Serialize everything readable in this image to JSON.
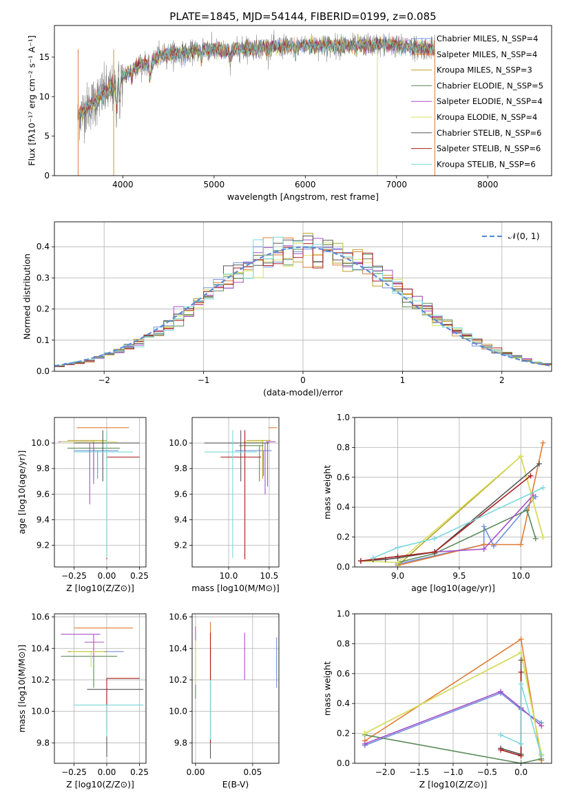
{
  "figure": {
    "title": "PLATE=1845, MJD=54144, FIBERID=0199, z=0.085"
  },
  "chart_data": [
    {
      "id": "spectrum",
      "type": "line",
      "title": "PLATE=1845, MJD=54144, FIBERID=0199, z=0.085",
      "xlabel": "wavelength [Angstrom, rest frame]",
      "ylabel": "Flux [fλ10⁻¹⁷ erg cm⁻² s⁻¹ A⁻¹]",
      "xlim": [
        3250,
        8700
      ],
      "ylim": [
        0,
        19
      ],
      "xticks": [
        4000,
        5000,
        6000,
        7000,
        8000
      ],
      "yticks": [
        0,
        5,
        10,
        15
      ],
      "grid": false,
      "legend_position": "right",
      "series": [
        {
          "name": "Chabrier MILES, N_SSP=4",
          "color": "#6f8fdc"
        },
        {
          "name": "Salpeter MILES, N_SSP=4",
          "color": "#e07a30"
        },
        {
          "name": "Kroupa MILES, N_SSP=3",
          "color": "#b8a02a"
        },
        {
          "name": "Chabrier ELODIE, N_SSP=5",
          "color": "#5a8a5a"
        },
        {
          "name": "Salpeter ELODIE, N_SSP=4",
          "color": "#a54fc8"
        },
        {
          "name": "Kroupa ELODIE, N_SSP=4",
          "color": "#d6e05a"
        },
        {
          "name": "Chabrier STELIB, N_SSP=6",
          "color": "#555555"
        },
        {
          "name": "Salpeter STELIB, N_SSP=6",
          "color": "#a81c1c"
        },
        {
          "name": "Kroupa STELIB, N_SSP=6",
          "color": "#78d8dc"
        }
      ],
      "data_color": "#808080",
      "continuum": {
        "x": [
          3500,
          3600,
          3700,
          3800,
          3900,
          4000,
          4100,
          4200,
          4300,
          4400,
          4500,
          4700,
          4900,
          5100,
          5300,
          5500,
          5800,
          6000,
          6300,
          6600,
          6900,
          7200,
          7420
        ],
        "y": [
          7.5,
          8.5,
          9.5,
          10.5,
          11.0,
          12.5,
          13.5,
          14.2,
          14.2,
          15.2,
          15.5,
          15.5,
          16.0,
          15.8,
          16.0,
          16.2,
          16.3,
          16.5,
          16.4,
          16.5,
          16.6,
          16.2,
          16.0
        ]
      }
    },
    {
      "id": "residuals",
      "type": "histogram",
      "xlabel": "(data-model)/error",
      "ylabel": "Normed distribution",
      "xlim": [
        -2.5,
        2.5
      ],
      "ylim": [
        0,
        0.48
      ],
      "xticks": [
        -2,
        -1,
        0,
        1,
        2
      ],
      "yticks": [
        0.0,
        0.1,
        0.2,
        0.3,
        0.4
      ],
      "grid": true,
      "legend_position": "top-right",
      "reference_curve": {
        "name": "𝒩(0, 1)",
        "color": "#5b8bd8",
        "style": "dashed"
      },
      "bin_width": 0.1,
      "bins_start": -2.5
    },
    {
      "id": "age-Z",
      "type": "errorbar",
      "xlabel": "Z [log10(Z/Z⊙)]",
      "ylabel": "age  [log10(age/yr)]",
      "xlim": [
        -0.4,
        0.3
      ],
      "ylim": [
        9.03,
        10.2
      ],
      "xticks": [
        -0.25,
        0.0,
        0.25
      ],
      "yticks": [
        9.2,
        9.4,
        9.6,
        9.8,
        10.0
      ],
      "grid": true,
      "points": [
        {
          "series": "Chabrier MILES",
          "x": -0.07,
          "xerr": [
            0.18,
            0.16
          ],
          "y": 9.94,
          "yerr": [
            0.22,
            0.0
          ]
        },
        {
          "series": "Salpeter MILES",
          "x": -0.03,
          "xerr": [
            0.2,
            0.2
          ],
          "y": 10.12,
          "yerr": [
            0.0,
            0.0
          ]
        },
        {
          "series": "Kroupa MILES",
          "x": -0.1,
          "xerr": [
            0.2,
            0.1
          ],
          "y": 10.02,
          "yerr": [
            0.28,
            0.0
          ]
        },
        {
          "series": "Chabrier ELODIE",
          "x": -0.1,
          "xerr": [
            0.2,
            0.2
          ],
          "y": 9.96,
          "yerr": [
            0.28,
            0.0
          ]
        },
        {
          "series": "Salpeter ELODIE",
          "x": -0.1,
          "xerr": [
            0.27,
            0.0
          ],
          "y": 10.01,
          "yerr": [
            0.3,
            0.0
          ]
        },
        {
          "series": "Kroupa ELODIE",
          "x": -0.12,
          "xerr": [
            0.23,
            0.2
          ],
          "y": 10.01,
          "yerr": [
            0.0,
            0.0
          ]
        },
        {
          "series": "Chabrier STELIB",
          "x": -0.03,
          "xerr": [
            0.22,
            0.28
          ],
          "y": 10.0,
          "yerr": [
            0.3,
            0.1
          ]
        },
        {
          "series": "Salpeter STELIB",
          "x": 0.0,
          "xerr": [
            0.0,
            0.25
          ],
          "y": 9.89,
          "yerr": [
            0.8,
            0.21
          ]
        },
        {
          "series": "Kroupa STELIB",
          "x": 0.0,
          "xerr": [
            0.25,
            0.2
          ],
          "y": 9.93,
          "yerr": [
            0.83,
            0.17
          ]
        },
        {
          "series": "Salpeter ELODIE",
          "x": -0.13,
          "xerr": [
            0.0,
            0.0
          ],
          "y": 9.9,
          "yerr": [
            0.38,
            0.1
          ]
        }
      ]
    },
    {
      "id": "age-mass",
      "type": "errorbar",
      "xlabel": "mass [log10(M/M⊙)]",
      "xlim": [
        9.55,
        10.62
      ],
      "ylim": [
        9.03,
        10.2
      ],
      "xticks": [
        10.0,
        10.5
      ],
      "yticks": [
        9.2,
        9.4,
        9.6,
        9.8,
        10.0
      ],
      "grid": true,
      "points": [
        {
          "series": "Chabrier MILES",
          "x": 10.43,
          "xerr": [
            0.35,
            0.1
          ],
          "y": 9.94,
          "yerr": [
            0.2,
            0.0
          ]
        },
        {
          "series": "Salpeter MILES",
          "x": 10.52,
          "xerr": [
            0.03,
            0.08
          ],
          "y": 10.12,
          "yerr": [
            0.0,
            0.0
          ]
        },
        {
          "series": "Kroupa MILES",
          "x": 10.42,
          "xerr": [
            0.2,
            0.1
          ],
          "y": 10.02,
          "yerr": [
            0.3,
            0.0
          ]
        },
        {
          "series": "Chabrier ELODIE",
          "x": 10.38,
          "xerr": [
            0.25,
            0.05
          ],
          "y": 9.98,
          "yerr": [
            0.28,
            0.0
          ]
        },
        {
          "series": "Salpeter ELODIE",
          "x": 10.48,
          "xerr": [
            0.02,
            0.1
          ],
          "y": 10.01,
          "yerr": [
            0.35,
            0.0
          ]
        },
        {
          "series": "Kroupa ELODIE",
          "x": 10.38,
          "xerr": [
            0.2,
            0.05
          ],
          "y": 10.01,
          "yerr": [
            0.0,
            0.0
          ]
        },
        {
          "series": "Chabrier STELIB",
          "x": 10.15,
          "xerr": [
            0.45,
            0.35
          ],
          "y": 10.0,
          "yerr": [
            0.3,
            0.1
          ]
        },
        {
          "series": "Salpeter STELIB",
          "x": 10.2,
          "xerr": [
            0.3,
            0.2
          ],
          "y": 9.89,
          "yerr": [
            0.8,
            0.21
          ]
        },
        {
          "series": "Kroupa STELIB",
          "x": 10.05,
          "xerr": [
            0.35,
            0.3
          ],
          "y": 9.93,
          "yerr": [
            0.83,
            0.17
          ]
        },
        {
          "series": "Salpeter ELODIE",
          "x": 10.45,
          "xerr": [
            0.0,
            0.0
          ],
          "y": 9.9,
          "yerr": [
            0.3,
            0.1
          ]
        }
      ]
    },
    {
      "id": "weight-age",
      "type": "line",
      "xlabel": "age  [log10(age/yr)]",
      "ylabel": "mass weight",
      "xlim": [
        8.65,
        10.25
      ],
      "ylim": [
        0,
        1.0
      ],
      "xticks": [
        9.0,
        9.5,
        10.0
      ],
      "yticks": [
        0.0,
        0.2,
        0.4,
        0.6,
        0.8,
        1.0
      ],
      "grid": true,
      "series": [
        {
          "name": "Chabrier MILES",
          "x": [
            9.0,
            9.7,
            9.7,
            9.78,
            10.12
          ],
          "y": [
            0.02,
            0.15,
            0.27,
            0.14,
            0.47
          ]
        },
        {
          "name": "Salpeter MILES",
          "x": [
            9.0,
            9.7,
            10.0,
            10.18
          ],
          "y": [
            0.01,
            0.15,
            0.15,
            0.83
          ]
        },
        {
          "name": "Kroupa MILES",
          "x": [
            9.0,
            10.0,
            10.18
          ],
          "y": [
            0.01,
            0.74,
            0.2
          ]
        },
        {
          "name": "Chabrier ELODIE",
          "x": [
            9.0,
            9.3,
            10.05,
            10.12
          ],
          "y": [
            0.03,
            0.09,
            0.38,
            0.19
          ]
        },
        {
          "name": "Salpeter ELODIE",
          "x": [
            9.3,
            9.7,
            10.1
          ],
          "y": [
            0.1,
            0.12,
            0.48
          ]
        },
        {
          "name": "Kroupa ELODIE",
          "x": [
            8.7,
            9.0,
            10.0,
            10.18
          ],
          "y": [
            0.04,
            0.03,
            0.74,
            0.2
          ]
        },
        {
          "name": "Chabrier STELIB",
          "x": [
            8.7,
            8.9,
            9.0,
            9.3,
            10.15
          ],
          "y": [
            0.04,
            0.05,
            0.06,
            0.1,
            0.69
          ]
        },
        {
          "name": "Salpeter STELIB",
          "x": [
            8.7,
            8.8,
            9.0,
            9.3,
            10.08
          ],
          "y": [
            0.04,
            0.05,
            0.07,
            0.1,
            0.61
          ]
        },
        {
          "name": "Kroupa STELIB",
          "x": [
            8.8,
            9.0,
            9.3,
            10.18
          ],
          "y": [
            0.06,
            0.13,
            0.19,
            0.53
          ]
        }
      ]
    },
    {
      "id": "mass-Z",
      "type": "errorbar",
      "xlabel": "Z [log10(Z/Z⊙)]",
      "ylabel": "mass [log10(M/M⊙)]",
      "xlim": [
        -0.4,
        0.3
      ],
      "ylim": [
        9.67,
        10.62
      ],
      "xticks": [
        -0.25,
        0.0,
        0.25
      ],
      "yticks": [
        9.8,
        10.0,
        10.2,
        10.4,
        10.6
      ],
      "grid": true,
      "points": [
        {
          "series": "Chabrier MILES",
          "x": -0.07,
          "xerr": [
            0.18,
            0.2
          ],
          "y": 10.38,
          "yerr": [
            0.0,
            0.0
          ]
        },
        {
          "series": "Salpeter MILES",
          "x": 0.0,
          "xerr": [
            0.25,
            0.2
          ],
          "y": 10.53,
          "yerr": [
            0.0,
            0.0
          ]
        },
        {
          "series": "Kroupa MILES",
          "x": -0.1,
          "xerr": [
            0.2,
            0.1
          ],
          "y": 10.38,
          "yerr": [
            0.0,
            0.0
          ]
        },
        {
          "series": "Chabrier ELODIE",
          "x": -0.1,
          "xerr": [
            0.25,
            0.18
          ],
          "y": 10.35,
          "yerr": [
            0.2,
            0.0
          ]
        },
        {
          "series": "Salpeter ELODIE",
          "x": -0.1,
          "xerr": [
            0.25,
            0.05
          ],
          "y": 10.49,
          "yerr": [
            0.15,
            0.0
          ]
        },
        {
          "series": "Kroupa ELODIE",
          "x": -0.12,
          "xerr": [
            0.15,
            0.1
          ],
          "y": 10.38,
          "yerr": [
            0.1,
            0.0
          ]
        },
        {
          "series": "Chabrier STELIB",
          "x": 0.0,
          "xerr": [
            0.15,
            0.28
          ],
          "y": 10.14,
          "yerr": [
            0.43,
            0.0
          ]
        },
        {
          "series": "Salpeter STELIB",
          "x": 0.0,
          "xerr": [
            0.0,
            0.25
          ],
          "y": 10.21,
          "yerr": [
            0.33,
            0.0
          ]
        },
        {
          "series": "Kroupa STELIB",
          "x": 0.0,
          "xerr": [
            0.25,
            0.28
          ],
          "y": 10.04,
          "yerr": [
            0.2,
            0.0
          ]
        },
        {
          "series": "Salpeter ELODIE",
          "x": -0.02,
          "xerr": [
            0.15,
            0.0
          ],
          "y": 10.44,
          "yerr": [
            0.0,
            0.0
          ]
        }
      ]
    },
    {
      "id": "mass-ebv",
      "type": "errorbar",
      "xlabel": "E(B-V)",
      "xlim": [
        -0.003,
        0.073
      ],
      "ylim": [
        9.67,
        10.62
      ],
      "xticks": [
        0.0,
        0.05
      ],
      "yticks": [
        9.8,
        10.0,
        10.2,
        10.4,
        10.6
      ],
      "grid": true,
      "points": [
        {
          "series": "Chabrier MILES",
          "x": 0.071,
          "y": 10.3,
          "yerr": [
            0.15,
            0.17
          ]
        },
        {
          "series": "Salpeter MILES",
          "x": 0.013,
          "y": 10.45,
          "yerr": [
            0.15,
            0.12
          ]
        },
        {
          "series": "Kroupa MILES",
          "x": 0.0,
          "y": 10.35,
          "yerr": [
            0.15,
            0.1
          ]
        },
        {
          "series": "Chabrier ELODIE",
          "x": 0.0,
          "y": 10.25,
          "yerr": [
            0.17,
            0.15
          ]
        },
        {
          "series": "Salpeter ELODIE",
          "x": 0.0,
          "y": 10.48,
          "yerr": [
            0.1,
            0.06
          ]
        },
        {
          "series": "Kroupa ELODIE",
          "x": 0.0,
          "y": 10.35,
          "yerr": [
            0.18,
            0.1
          ]
        },
        {
          "series": "Chabrier STELIB",
          "x": 0.013,
          "y": 10.1,
          "yerr": [
            0.4,
            0.3
          ]
        },
        {
          "series": "Salpeter STELIB",
          "x": 0.013,
          "y": 10.2,
          "yerr": [
            0.4,
            0.3
          ]
        },
        {
          "series": "Kroupa STELIB",
          "x": 0.013,
          "y": 10.1,
          "yerr": [
            0.28,
            0.1
          ]
        },
        {
          "series": "Salpeter ELODIE",
          "x": 0.043,
          "y": 10.35,
          "yerr": [
            0.15,
            0.15
          ]
        }
      ]
    },
    {
      "id": "weight-Z",
      "type": "line",
      "xlabel": "Z [log10(Z/Z⊙)]",
      "ylabel": "mass weight",
      "xlim": [
        -2.45,
        0.45
      ],
      "ylim": [
        0,
        1.0
      ],
      "xticks": [
        -2.0,
        -1.5,
        -1.0,
        -0.5,
        0.0
      ],
      "yticks": [
        0.0,
        0.2,
        0.4,
        0.6,
        0.8,
        1.0
      ],
      "grid": true,
      "series": [
        {
          "name": "Chabrier MILES",
          "x": [
            -2.3,
            -0.3,
            0.0,
            0.3
          ],
          "y": [
            0.12,
            0.47,
            0.36,
            0.27
          ]
        },
        {
          "name": "Salpeter MILES",
          "x": [
            -2.3,
            0.0,
            0.3
          ],
          "y": [
            0.15,
            0.83,
            0.02
          ]
        },
        {
          "name": "Kroupa MILES",
          "x": [
            -2.3,
            0.0,
            0.3
          ],
          "y": [
            0.2,
            0.74,
            0.06
          ]
        },
        {
          "name": "Chabrier ELODIE",
          "x": [
            -2.3,
            0.0,
            0.3
          ],
          "y": [
            0.19,
            0.0,
            0.03
          ]
        },
        {
          "name": "Salpeter ELODIE",
          "x": [
            -2.3,
            -0.3,
            0.0,
            0.3
          ],
          "y": [
            0.13,
            0.48,
            0.37,
            0.25
          ]
        },
        {
          "name": "Kroupa ELODIE",
          "x": [
            -2.3,
            0.0,
            0.3
          ],
          "y": [
            0.2,
            0.74,
            0.06
          ]
        },
        {
          "name": "Chabrier STELIB",
          "x": [
            -0.3,
            0.0,
            0.0
          ],
          "y": [
            0.1,
            0.06,
            0.69
          ]
        },
        {
          "name": "Salpeter STELIB",
          "x": [
            -0.3,
            0.0,
            0.0
          ],
          "y": [
            0.09,
            0.05,
            0.61
          ]
        },
        {
          "name": "Kroupa STELIB",
          "x": [
            -0.3,
            0.0,
            0.0,
            0.3
          ],
          "y": [
            0.19,
            0.13,
            0.53,
            0.05
          ]
        }
      ]
    }
  ]
}
